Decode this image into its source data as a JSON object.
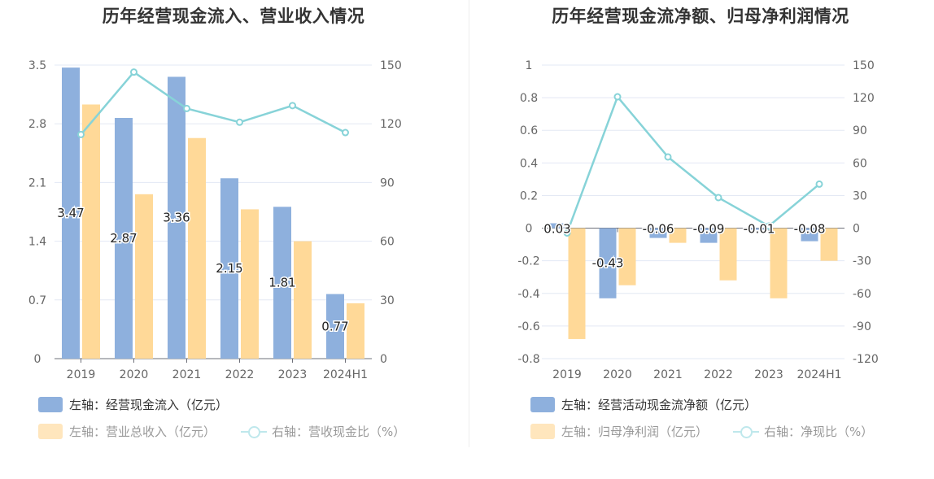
{
  "colors": {
    "bar_blue": "#8eb0dd",
    "bar_orange": "#ffd998",
    "line_teal": "#87d3d8",
    "axis_text": "#666666",
    "grid": "#e3e8f4"
  },
  "chart_data": [
    {
      "type": "bar",
      "title": "历年经营现金流入、营业收入情况",
      "categories": [
        "2019",
        "2020",
        "2021",
        "2022",
        "2023",
        "2024H1"
      ],
      "left_axis": {
        "ticks": [
          "0",
          "0.7",
          "1.4",
          "2.1",
          "2.8",
          "3.5"
        ],
        "range": [
          0,
          3.5
        ]
      },
      "right_axis": {
        "ticks": [
          "0",
          "30",
          "60",
          "90",
          "120",
          "150"
        ],
        "range": [
          0,
          150
        ]
      },
      "series": [
        {
          "name": "左轴：经营现金流入（亿元）",
          "type": "bar",
          "axis": "left",
          "values": [
            3.47,
            2.87,
            3.36,
            2.15,
            1.81,
            0.77
          ],
          "labels": [
            "3.47",
            "2.87",
            "3.36",
            "2.15",
            "1.81",
            "0.77"
          ]
        },
        {
          "name": "左轴：营业总收入（亿元）",
          "type": "bar",
          "axis": "left",
          "values": [
            3.03,
            1.96,
            2.63,
            1.78,
            1.4,
            0.66
          ]
        },
        {
          "name": "右轴：营收现金比（%）",
          "type": "line",
          "axis": "right",
          "values": [
            114.5,
            146.4,
            127.8,
            120.8,
            129.3,
            115.5
          ]
        }
      ],
      "grid": true,
      "legend_position": "bottom-left"
    },
    {
      "type": "bar",
      "title": "历年经营现金流净额、归母净利润情况",
      "categories": [
        "2019",
        "2020",
        "2021",
        "2022",
        "2023",
        "2024H1"
      ],
      "left_axis": {
        "ticks": [
          "-0.8",
          "-0.6",
          "-0.4",
          "-0.2",
          "0",
          "0.2",
          "0.4",
          "0.6",
          "0.8",
          "1"
        ],
        "range": [
          -0.8,
          1
        ]
      },
      "right_axis": {
        "ticks": [
          "-120",
          "-90",
          "-60",
          "-30",
          "0",
          "30",
          "60",
          "90",
          "120",
          "150"
        ],
        "range": [
          -120,
          150
        ]
      },
      "series": [
        {
          "name": "左轴：经营活动现金流净额（亿元）",
          "type": "bar",
          "axis": "left",
          "values": [
            0.03,
            -0.43,
            -0.06,
            -0.09,
            -0.01,
            -0.08
          ],
          "labels": [
            "0.03",
            "-0.43",
            "-0.06",
            "-0.09",
            "-0.01",
            "-0.08"
          ]
        },
        {
          "name": "左轴：归母净利润（亿元）",
          "type": "bar",
          "axis": "left",
          "values": [
            -0.68,
            -0.35,
            -0.09,
            -0.32,
            -0.43,
            -0.2
          ]
        },
        {
          "name": "右轴：净现比（%）",
          "type": "line",
          "axis": "right",
          "values": [
            -4.4,
            120.8,
            65.5,
            28.1,
            1.9,
            40.5
          ]
        }
      ],
      "grid": true,
      "legend_position": "bottom-left"
    }
  ]
}
